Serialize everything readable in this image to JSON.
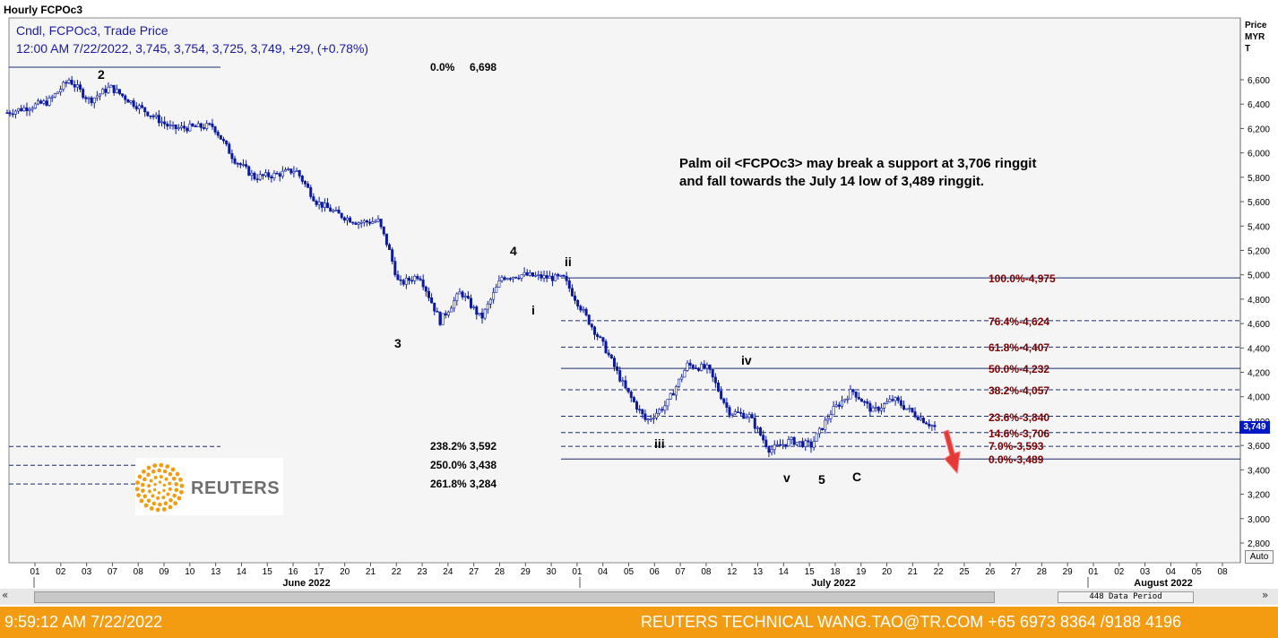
{
  "window": {
    "title": "Hourly FCPOc3"
  },
  "info": {
    "line1": "Cndl, FCPOc3, Trade Price",
    "line2": "12:00 AM 7/22/2022, 3,745, 3,754, 3,725, 3,749, +29, (+0.78%)"
  },
  "y_axis": {
    "title_lines": [
      "Price",
      "MYR",
      "T"
    ],
    "last_price_tag": "3,749"
  },
  "comment": {
    "line1": "Palm oil <FCPOc3> may break a support at 3,706 ringgit",
    "line2": "and fall towards the July 14 low of 3,489 ringgit."
  },
  "ext_top": {
    "pct": "0.0%",
    "value": "6,698"
  },
  "ext_levels": [
    {
      "pct": "238.2%",
      "value": "3,592"
    },
    {
      "pct": "250.0%",
      "value": "3,438"
    },
    {
      "pct": "261.8%",
      "value": "3,284"
    }
  ],
  "fib_levels": [
    {
      "pct": "100.0%",
      "value": "4,975"
    },
    {
      "pct": "76.4%",
      "value": "4,624"
    },
    {
      "pct": "61.8%",
      "value": "4,407"
    },
    {
      "pct": "50.0%",
      "value": "4,232"
    },
    {
      "pct": "38.2%",
      "value": "4,057"
    },
    {
      "pct": "23.6%",
      "value": "3,840"
    },
    {
      "pct": "14.6%",
      "value": "3,706"
    },
    {
      "pct": "7.0%",
      "value": "3,593"
    },
    {
      "pct": "0.0%",
      "value": "3,489"
    }
  ],
  "waves": [
    "2",
    "3",
    "4",
    "ii",
    "i",
    "iv",
    "iii",
    "v",
    "5",
    "C"
  ],
  "x_axis": {
    "day_labels": [
      "01",
      "02",
      "03",
      "07",
      "08",
      "09",
      "10",
      "13",
      "14",
      "15",
      "16",
      "17",
      "20",
      "21",
      "22",
      "23",
      "24",
      "27",
      "28",
      "29",
      "30",
      "01",
      "04",
      "05",
      "06",
      "07",
      "08",
      "12",
      "13",
      "14",
      "15",
      "18",
      "19",
      "20",
      "21",
      "22",
      "25",
      "26",
      "27",
      "28",
      "29",
      "01",
      "02",
      "03",
      "04",
      "05",
      "08"
    ],
    "months": [
      "June 2022",
      "July 2022",
      "August 2022"
    ]
  },
  "scroll": {
    "left_icon": "«",
    "right_icon": "»",
    "period_label": "448 Data Period"
  },
  "auto_button": "Auto",
  "logo": {
    "text": "REUTERS"
  },
  "footer": {
    "clock": "9:59:12 AM 7/22/2022",
    "credit": "REUTERS TECHNICAL  WANG.TAO@TR.COM  +65 6973 8364 /9188 4196"
  },
  "colors": {
    "candle": "#0a1aa0",
    "fib_text": "#7a0000",
    "fib_line": "#1c2d6e",
    "footer": "#f39c12",
    "arrow": "#e53935"
  },
  "chart_data": {
    "type": "candlestick",
    "title": "Hourly FCPOc3",
    "ylabel": "Price MYR T",
    "yticks": [
      "2,800",
      "3,000",
      "3,200",
      "3,400",
      "3,600",
      "3,800",
      "4,000",
      "4,200",
      "4,400",
      "4,600",
      "4,800",
      "5,000",
      "5,200",
      "5,400",
      "5,600",
      "5,800",
      "6,000",
      "6,200",
      "6,400",
      "6,600"
    ],
    "ylim": [
      2700,
      6950
    ],
    "last": {
      "date": "7/22/2022",
      "open": 3745,
      "high": 3754,
      "low": 3725,
      "close": 3749,
      "change": 29,
      "change_pct": 0.78
    },
    "series_path": [
      [
        0,
        6330
      ],
      [
        2,
        6420
      ],
      [
        3,
        6600
      ],
      [
        4,
        6430
      ],
      [
        5,
        6540
      ],
      [
        6,
        6420
      ],
      [
        8,
        6200
      ],
      [
        10,
        6220
      ],
      [
        11,
        5950
      ],
      [
        12,
        5800
      ],
      [
        13,
        5820
      ],
      [
        14,
        5860
      ],
      [
        15,
        5600
      ],
      [
        16,
        5500
      ],
      [
        17,
        5430
      ],
      [
        18,
        5440
      ],
      [
        18.5,
        5220
      ],
      [
        19,
        4920
      ],
      [
        20,
        5000
      ],
      [
        21,
        4620
      ],
      [
        22,
        4860
      ],
      [
        23,
        4640
      ],
      [
        24,
        4980
      ],
      [
        25,
        5000
      ],
      [
        26,
        4980
      ],
      [
        27,
        4970
      ],
      [
        28,
        4680
      ],
      [
        29,
        4400
      ],
      [
        30,
        4060
      ],
      [
        31,
        3800
      ],
      [
        32,
        3940
      ],
      [
        33,
        4260
      ],
      [
        34,
        4230
      ],
      [
        35,
        3880
      ],
      [
        36,
        3840
      ],
      [
        37,
        3560
      ],
      [
        38,
        3640
      ],
      [
        39,
        3600
      ],
      [
        40,
        3880
      ],
      [
        41,
        4050
      ],
      [
        42,
        3880
      ],
      [
        43,
        3980
      ],
      [
        44,
        3860
      ],
      [
        45,
        3749
      ]
    ],
    "fibonacci_retracement": [
      {
        "pct": "100.0%",
        "value": 4975
      },
      {
        "pct": "76.4%",
        "value": 4624
      },
      {
        "pct": "61.8%",
        "value": 4407
      },
      {
        "pct": "50.0%",
        "value": 4232
      },
      {
        "pct": "38.2%",
        "value": 4057
      },
      {
        "pct": "23.6%",
        "value": 3840
      },
      {
        "pct": "14.6%",
        "value": 3706
      },
      {
        "pct": "7.0%",
        "value": 3593
      },
      {
        "pct": "0.0%",
        "value": 3489
      }
    ],
    "fibonacci_extension": [
      {
        "pct": "0.0%",
        "value": 6698
      },
      {
        "pct": "238.2%",
        "value": 3592
      },
      {
        "pct": "250.0%",
        "value": 3438
      },
      {
        "pct": "261.8%",
        "value": 3284
      }
    ],
    "wave_labels": [
      {
        "label": "2",
        "x": 3,
        "price": 6650
      },
      {
        "label": "3",
        "x": 21,
        "price": 4520
      },
      {
        "label": "4",
        "x": 25,
        "price": 5060
      },
      {
        "label": "ii",
        "x": 27.3,
        "price": 5100
      },
      {
        "label": "i",
        "x": 26,
        "price": 4690
      },
      {
        "label": "iii",
        "x": 31,
        "price": 3590
      },
      {
        "label": "iv",
        "x": 34.3,
        "price": 4290
      },
      {
        "label": "v",
        "x": 37,
        "price": 3350
      },
      {
        "label": "5",
        "x": 38.3,
        "price": 3340
      },
      {
        "label": "C",
        "x": 39.7,
        "price": 3360
      }
    ]
  }
}
